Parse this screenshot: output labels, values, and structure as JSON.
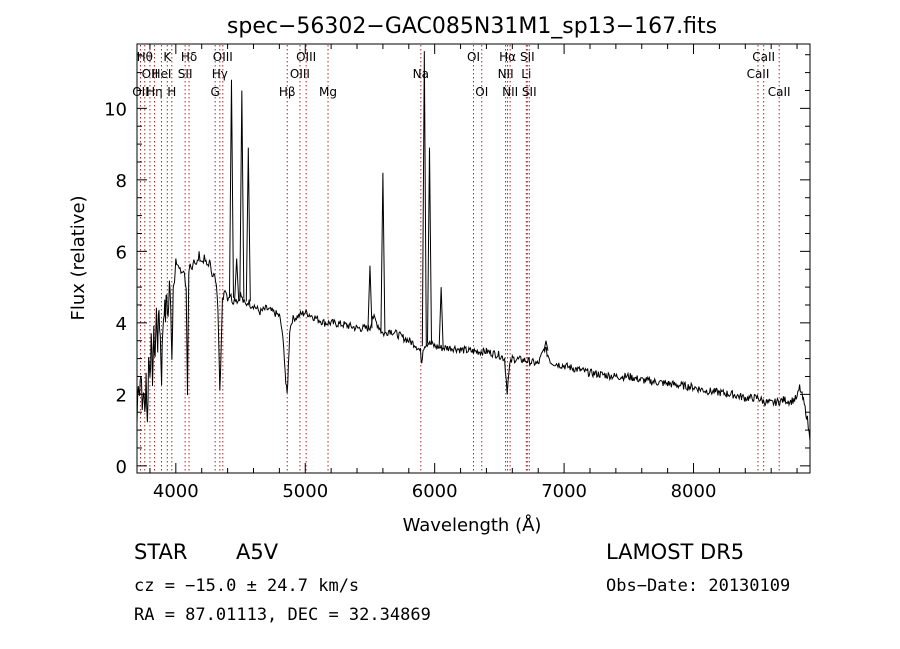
{
  "chart_data": {
    "type": "line",
    "title": "spec−56302−GAC085N31M1_sp13−167.fits",
    "xlabel": "Wavelength (Å)",
    "ylabel": "Flux (relative)",
    "xlim": [
      3700,
      8900
    ],
    "ylim": [
      -0.2,
      11.8
    ],
    "xticks": [
      4000,
      5000,
      6000,
      7000,
      8000
    ],
    "xtick_labels": [
      "4000",
      "5000",
      "6000",
      "7000",
      "8000"
    ],
    "yticks": [
      0,
      2,
      4,
      6,
      8,
      10
    ],
    "ytick_labels": [
      "0",
      "2",
      "4",
      "6",
      "8",
      "10"
    ],
    "grid": false,
    "series": [
      {
        "color": "#000000",
        "x": [
          3700,
          3710,
          3720,
          3730,
          3740,
          3750,
          3760,
          3770,
          3780,
          3790,
          3800,
          3810,
          3820,
          3830,
          3840,
          3850,
          3860,
          3870,
          3880,
          3890,
          3900,
          3910,
          3920,
          3930,
          3940,
          3950,
          3960,
          3970,
          3980,
          3990,
          4000,
          4020,
          4040,
          4060,
          4080,
          4090,
          4100,
          4110,
          4120,
          4140,
          4160,
          4180,
          4200,
          4220,
          4240,
          4260,
          4280,
          4300,
          4320,
          4330,
          4340,
          4350,
          4360,
          4380,
          4400,
          4420,
          4440,
          4460,
          4480,
          4500,
          4520,
          4540,
          4560,
          4580,
          4600,
          4650,
          4700,
          4750,
          4800,
          4820,
          4840,
          4850,
          4860,
          4870,
          4880,
          4900,
          4950,
          5000,
          5050,
          5100,
          5150,
          5200,
          5300,
          5400,
          5500,
          5520,
          5600,
          5620,
          5650,
          5700,
          5750,
          5800,
          5850,
          5890,
          5900,
          5910,
          5930,
          5950,
          6000,
          6050,
          6100,
          6150,
          6200,
          6300,
          6400,
          6500,
          6540,
          6560,
          6580,
          6600,
          6700,
          6800,
          6850,
          6900,
          7000,
          7100,
          7200,
          7300,
          7400,
          7500,
          7600,
          7700,
          7800,
          7900,
          8000,
          8100,
          8200,
          8300,
          8400,
          8500,
          8540,
          8600,
          8660,
          8700,
          8750,
          8800,
          8820,
          8850,
          8880,
          8900
        ],
        "y": [
          1.2,
          2.5,
          2.0,
          2.8,
          1.5,
          2.2,
          1.4,
          2.6,
          1.1,
          3.0,
          2.7,
          3.4,
          2.5,
          3.6,
          3.1,
          4.3,
          3.4,
          4.4,
          3.6,
          2.5,
          3.9,
          4.5,
          4.2,
          4.8,
          4.1,
          5.0,
          4.7,
          3.0,
          5.3,
          5.0,
          5.7,
          5.6,
          5.4,
          5.5,
          5.0,
          1.9,
          5.3,
          5.6,
          5.5,
          5.8,
          5.6,
          5.9,
          5.7,
          5.8,
          5.6,
          5.7,
          5.4,
          5.3,
          4.8,
          3.8,
          2.2,
          3.2,
          4.6,
          5.0,
          4.7,
          4.8,
          4.6,
          4.7,
          4.6,
          4.8,
          4.6,
          4.5,
          4.6,
          4.5,
          4.5,
          4.3,
          4.4,
          4.3,
          4.2,
          3.8,
          3.0,
          2.3,
          2.0,
          2.8,
          3.8,
          4.1,
          4.2,
          4.3,
          4.2,
          4.1,
          4.0,
          4.0,
          3.95,
          3.85,
          3.85,
          4.2,
          3.7,
          3.7,
          3.8,
          3.7,
          3.6,
          3.5,
          3.4,
          3.2,
          2.9,
          3.3,
          3.4,
          3.45,
          3.35,
          3.3,
          3.3,
          3.3,
          3.25,
          3.2,
          3.2,
          3.1,
          3.0,
          2.1,
          2.8,
          3.0,
          2.95,
          2.85,
          3.3,
          2.9,
          2.8,
          2.7,
          2.6,
          2.55,
          2.5,
          2.5,
          2.4,
          2.35,
          2.3,
          2.25,
          2.2,
          2.1,
          2.05,
          2.0,
          1.9,
          1.9,
          1.8,
          1.75,
          1.8,
          1.85,
          1.8,
          1.9,
          2.2,
          1.8,
          1.3,
          0.7
        ]
      }
    ],
    "emission_spikes": [
      {
        "x": 4430,
        "y": 10.8
      },
      {
        "x": 4470,
        "y": 5.8
      },
      {
        "x": 4510,
        "y": 10.5
      },
      {
        "x": 4560,
        "y": 8.9
      },
      {
        "x": 5500,
        "y": 5.6
      },
      {
        "x": 5600,
        "y": 8.2
      },
      {
        "x": 5920,
        "y": 11.6
      },
      {
        "x": 5960,
        "y": 8.9
      },
      {
        "x": 6050,
        "y": 5.0
      },
      {
        "x": 6860,
        "y": 3.5
      }
    ],
    "line_markers": [
      {
        "x": 3727,
        "row": 2,
        "label": "OII"
      },
      {
        "x": 3760,
        "row": 0,
        "label": "Hθ"
      },
      {
        "x": 3800,
        "row": 1,
        "label": "OII"
      },
      {
        "x": 3835,
        "row": 2,
        "label": "Hη"
      },
      {
        "x": 3889,
        "row": 1,
        "label": "HeI"
      },
      {
        "x": 3934,
        "row": 0,
        "label": "K"
      },
      {
        "x": 3969,
        "row": 2,
        "label": "H"
      },
      {
        "x": 4072,
        "row": 1,
        "label": "SII"
      },
      {
        "x": 4102,
        "row": 0,
        "label": "Hδ"
      },
      {
        "x": 4304,
        "row": 2,
        "label": "G"
      },
      {
        "x": 4340,
        "row": 1,
        "label": "Hγ"
      },
      {
        "x": 4363,
        "row": 0,
        "label": "OIII"
      },
      {
        "x": 4861,
        "row": 2,
        "label": "Hβ"
      },
      {
        "x": 4959,
        "row": 1,
        "label": "OIII"
      },
      {
        "x": 5007,
        "row": 0,
        "label": "OIII"
      },
      {
        "x": 5176,
        "row": 2,
        "label": "Mg"
      },
      {
        "x": 5893,
        "row": 1,
        "label": "Na"
      },
      {
        "x": 6300,
        "row": 0,
        "label": "OI"
      },
      {
        "x": 6364,
        "row": 2,
        "label": "OI"
      },
      {
        "x": 6548,
        "row": 1,
        "label": "NII"
      },
      {
        "x": 6563,
        "row": 0,
        "label": "Hα"
      },
      {
        "x": 6583,
        "row": 2,
        "label": "NII"
      },
      {
        "x": 6708,
        "row": 1,
        "label": "Li"
      },
      {
        "x": 6716,
        "row": 0,
        "label": "SII"
      },
      {
        "x": 6731,
        "row": 2,
        "label": "SII"
      },
      {
        "x": 8498,
        "row": 1,
        "label": "CaII"
      },
      {
        "x": 8542,
        "row": 0,
        "label": "CaII"
      },
      {
        "x": 8662,
        "row": 2,
        "label": "CaII"
      }
    ],
    "marker_color": "#a52a2a"
  },
  "info": {
    "class": "STAR",
    "subclass": "A5V",
    "survey": "LAMOST DR5",
    "cz": "cz = −15.0 ± 24.7 km/s",
    "obs_date": "Obs−Date: 20130109",
    "coords": "RA =  87.01113, DEC =  32.34869"
  }
}
